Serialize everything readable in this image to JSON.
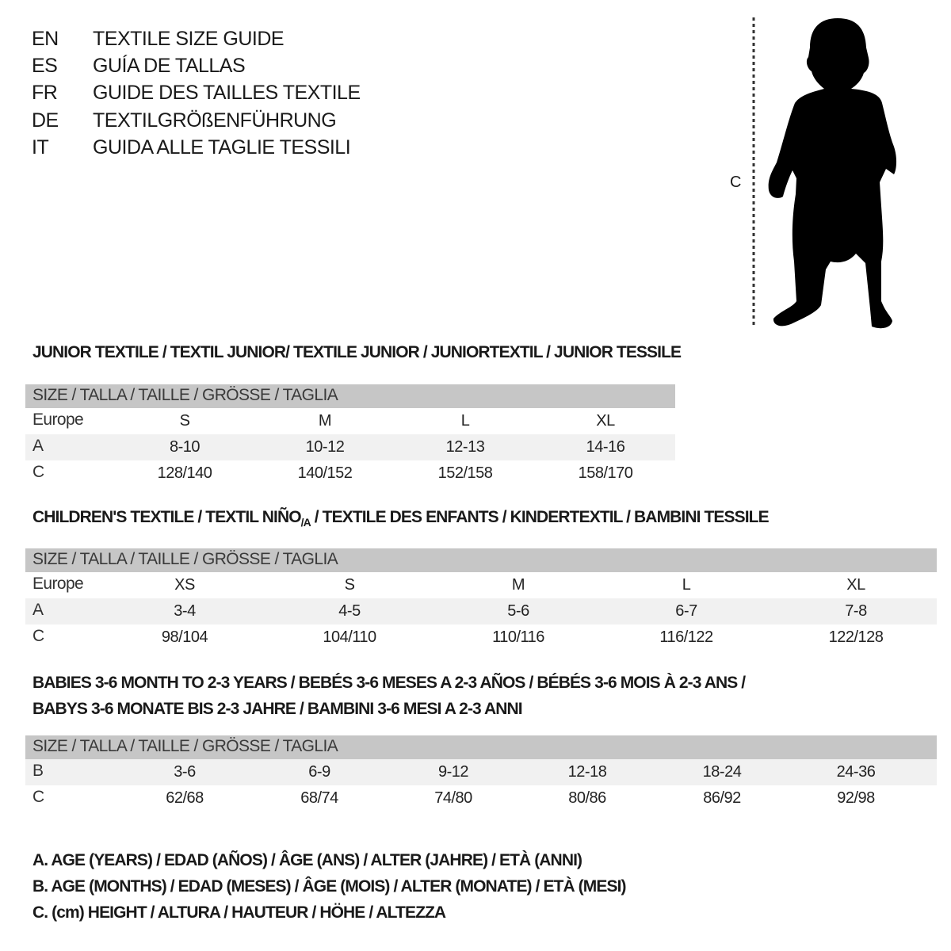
{
  "titles": [
    {
      "code": "EN",
      "text": "TEXTILE SIZE GUIDE"
    },
    {
      "code": "ES",
      "text": "GUÍA DE TALLAS"
    },
    {
      "code": "FR",
      "text": "GUIDE DES TAILLES TEXTILE"
    },
    {
      "code": "DE",
      "text": "TEXTILGRÖßENFÜHRUNG"
    },
    {
      "code": "IT",
      "text": "GUIDA ALLE TAGLIE TESSILI"
    }
  ],
  "figure": {
    "measure_label": "C",
    "icon": "child-silhouette-icon"
  },
  "colors": {
    "header_row": "#c6c6c6",
    "alt_row": "#f1f1f1",
    "text": "#1a1a1a"
  },
  "junior": {
    "title": "JUNIOR TEXTILE / TEXTIL JUNIOR/ TEXTILE JUNIOR / JUNIORTEXTIL / JUNIOR TESSILE",
    "header": "SIZE / TALLA / TAILLE / GRÖSSE / TAGLIA",
    "rows": [
      {
        "label": "Europe",
        "values": [
          "S",
          "M",
          "L",
          "XL"
        ]
      },
      {
        "label": "A",
        "values": [
          "8-10",
          "10-12",
          "12-13",
          "14-16"
        ]
      },
      {
        "label": "C",
        "values": [
          "128/140",
          "140/152",
          "152/158",
          "158/170"
        ]
      }
    ]
  },
  "children": {
    "title": "CHILDREN'S TEXTILE / TEXTIL NIÑO",
    "title_sub": "/A",
    "title_rest": " / TEXTILE DES ENFANTS / KINDERTEXTIL / BAMBINI TESSILE",
    "header": "SIZE / TALLA / TAILLE / GRÖSSE / TAGLIA",
    "rows": [
      {
        "label": "Europe",
        "values": [
          "XS",
          "S",
          "M",
          "L",
          "XL"
        ]
      },
      {
        "label": "A",
        "values": [
          "3-4",
          "4-5",
          "5-6",
          "6-7",
          "7-8"
        ]
      },
      {
        "label": "C",
        "values": [
          "98/104",
          "104/110",
          "110/116",
          "116/122",
          "122/128"
        ]
      }
    ]
  },
  "babies": {
    "title_line1": "BABIES 3-6 MONTH TO 2-3 YEARS / BEBÉS 3-6 MESES A 2-3 AÑOS / BÉBÉS 3-6 MOIS À 2-3 ANS /",
    "title_line2": "BABYS 3-6 MONATE BIS 2-3 JAHRE / BAMBINI 3-6 MESI A 2-3 ANNI",
    "header": "SIZE / TALLA / TAILLE / GRÖSSE / TAGLIA",
    "rows": [
      {
        "label": "B",
        "values": [
          "3-6",
          "6-9",
          "9-12",
          "12-18",
          "18-24",
          "24-36"
        ]
      },
      {
        "label": "C",
        "values": [
          "62/68",
          "68/74",
          "74/80",
          "80/86",
          "86/92",
          "92/98"
        ]
      }
    ]
  },
  "notes": [
    "A. AGE (YEARS) / EDAD (AÑOS) / ÂGE (ANS) / ALTER (JAHRE) / ETÀ (ANNI)",
    "B. AGE (MONTHS) / EDAD (MESES) / ÂGE (MOIS) / ALTER (MONATE) / ETÀ (MESI)",
    "C. (cm) HEIGHT / ALTURA / HAUTEUR / HÖHE / ALTEZZA"
  ]
}
